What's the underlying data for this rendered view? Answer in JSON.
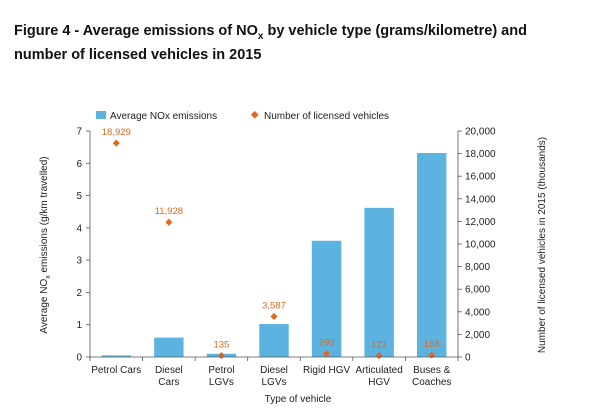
{
  "figure": {
    "title_prefix": "Figure 4 - Average emissions of NO",
    "title_sub": "x",
    "title_suffix": " by vehicle type (grams/kilometre) and number of licensed vehicles in 2015"
  },
  "chart_data": {
    "type": "bar",
    "categories": [
      [
        "Petrol Cars"
      ],
      [
        "Diesel",
        "Cars"
      ],
      [
        "Petrol",
        "LGVs"
      ],
      [
        "Diesel",
        "LGVs"
      ],
      [
        "Rigid HGV"
      ],
      [
        "Articulated",
        "HGV"
      ],
      [
        "Buses &",
        "Coaches"
      ]
    ],
    "series": [
      {
        "name": "Average NOx emissions",
        "kind": "bar",
        "axis": "left",
        "color": "#5cb3e0",
        "values": [
          0.05,
          0.6,
          0.1,
          1.02,
          3.6,
          4.62,
          6.32
        ]
      },
      {
        "name": "Number of licensed vehicles",
        "kind": "marker",
        "axis": "right",
        "color": "#e06a1f",
        "values": [
          18929,
          11928,
          135,
          3587,
          290,
          127,
          168
        ],
        "labels": [
          "18,929",
          "11,928",
          "135",
          "3,587",
          "290",
          "127",
          "168"
        ]
      }
    ],
    "xlabel": "Type of vehicle",
    "ylabel_left": "Average NO",
    "ylabel_left_sub": "x",
    "ylabel_left_suffix": " emissions (g/km travelled)",
    "ylabel_right": "Number of licensed vehicles in 2015 (thousands)",
    "ylim_left": [
      0,
      7
    ],
    "ylim_right": [
      0,
      20000
    ],
    "yticks_left": [
      "0",
      "1",
      "2",
      "3",
      "4",
      "5",
      "6",
      "7"
    ],
    "yticks_right": [
      "0",
      "2,000",
      "4,000",
      "6,000",
      "8,000",
      "10,000",
      "12,000",
      "14,000",
      "16,000",
      "18,000",
      "20,000"
    ],
    "grid": false,
    "legend": "top"
  }
}
